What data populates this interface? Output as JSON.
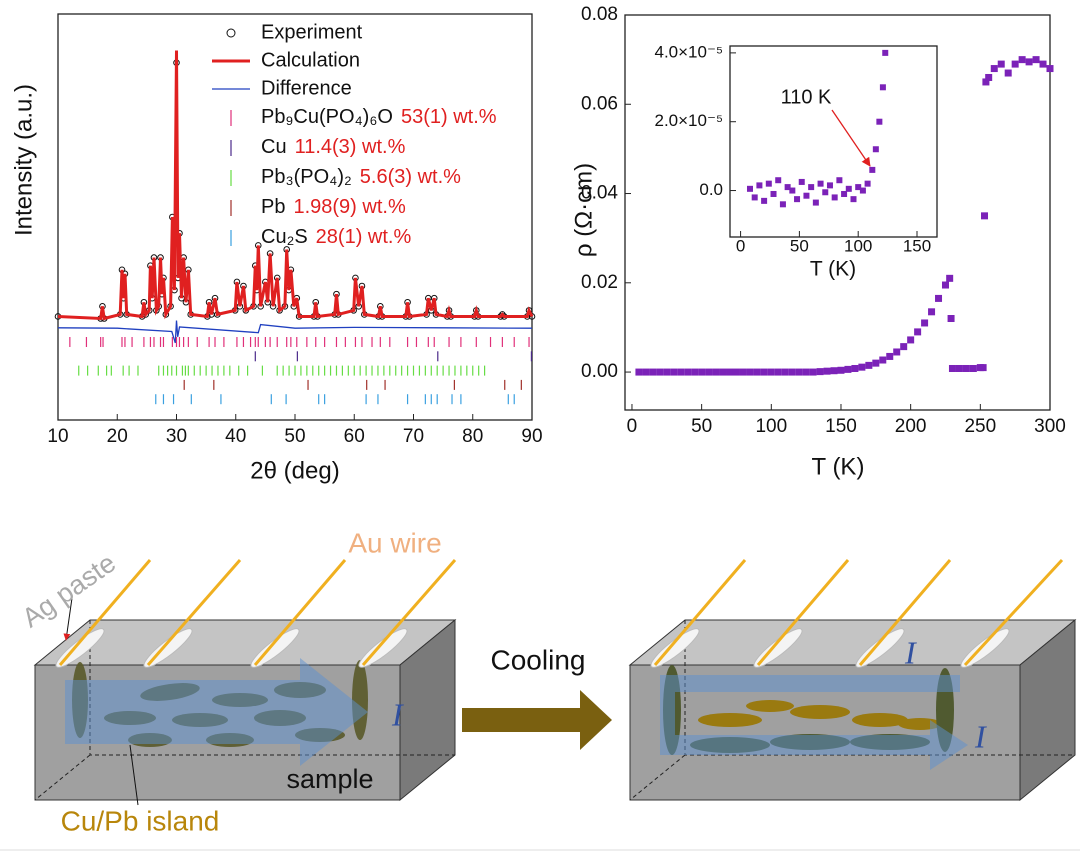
{
  "chart_data": [
    {
      "type": "line",
      "xlabel": "2θ (deg)",
      "ylabel": "Intensity (a.u.)",
      "xlim": [
        10,
        90
      ],
      "xticks": [
        10,
        20,
        30,
        40,
        50,
        60,
        70,
        80,
        90
      ],
      "ylim": [
        0,
        100
      ],
      "x": [
        10,
        17.2,
        17.5,
        17.8,
        20.5,
        20.8,
        21.05,
        21.3,
        21.6,
        24.2,
        24.5,
        24.8,
        25.4,
        25.6,
        25.9,
        26.2,
        26.6,
        27.0,
        27.3,
        27.55,
        27.8,
        28.2,
        29.0,
        29.3,
        29.65,
        30.0,
        30.25,
        30.5,
        30.85,
        31.2,
        31.6,
        32.0,
        32.4,
        35.2,
        35.5,
        35.9,
        36.5,
        36.9,
        39.9,
        40.2,
        40.7,
        41.3,
        41.7,
        43.0,
        43.3,
        43.55,
        43.8,
        44.2,
        45.0,
        45.4,
        45.8,
        46.3,
        47.0,
        47.4,
        48.3,
        48.6,
        48.95,
        49.3,
        49.8,
        50.3,
        50.7,
        53.2,
        53.5,
        53.8,
        56.7,
        57.0,
        57.3,
        59.9,
        60.2,
        60.75,
        61.3,
        61.7,
        64.1,
        64.4,
        64.7,
        68.7,
        69.0,
        69.3,
        72.2,
        72.5,
        73.0,
        73.5,
        73.8,
        75.7,
        76.0,
        76.3,
        80.3,
        80.6,
        80.9,
        84.7,
        85.0,
        85.3,
        89.2,
        89.5,
        90
      ],
      "series": [
        {
          "name": "Experiment",
          "mark": "circle",
          "color": "#111111",
          "values": [
            25.5,
            25,
            28,
            25,
            26,
            37,
            30,
            36,
            26,
            25.5,
            29,
            26,
            27,
            38,
            30,
            40,
            27,
            28,
            40,
            31,
            35,
            26,
            28,
            50,
            32,
            88,
            35,
            46,
            30,
            40,
            29,
            37,
            26,
            25.5,
            29,
            26,
            30,
            26,
            27,
            34,
            28,
            33,
            27,
            28,
            38,
            32,
            43,
            28,
            34,
            29,
            41,
            28,
            35,
            27,
            28,
            42,
            32,
            37,
            28,
            30,
            25.5,
            25.5,
            29,
            25.5,
            26,
            31,
            26,
            27,
            35,
            28,
            33,
            26,
            25.5,
            28,
            25.5,
            25.5,
            29,
            25.5,
            26,
            30,
            27,
            30,
            26,
            25.5,
            27,
            25.5,
            25.5,
            27,
            25.5,
            25.5,
            26,
            25.5,
            25.5,
            27,
            25.5
          ]
        },
        {
          "name": "Calculation",
          "mark": "line",
          "color": "#e02020",
          "values": [
            25.5,
            25,
            28,
            25,
            26,
            37,
            30,
            36,
            26,
            25.5,
            29,
            26,
            27,
            38,
            30,
            40,
            27,
            28,
            40,
            31,
            35,
            26,
            28,
            50,
            32,
            91,
            35,
            46,
            30,
            40,
            29,
            37,
            26,
            25.5,
            29,
            26,
            30,
            26,
            27,
            34,
            28,
            33,
            27,
            28,
            38,
            32,
            43,
            28,
            34,
            29,
            41,
            28,
            35,
            27,
            28,
            42,
            32,
            37,
            28,
            30,
            25.5,
            25.5,
            29,
            25.5,
            26,
            31,
            26,
            27,
            35,
            28,
            33,
            26,
            25.5,
            28,
            25.5,
            25.5,
            29,
            25.5,
            26,
            30,
            27,
            30,
            26,
            25.5,
            27,
            25.5,
            25.5,
            27,
            25.5,
            25.5,
            26,
            25.5,
            25.5,
            27,
            25.5
          ]
        },
        {
          "name": "Difference",
          "mark": "line",
          "color": "#2040c0",
          "x": [
            10,
            20,
            29.2,
            29.8,
            30.0,
            30.2,
            30.5,
            43.8,
            44.2,
            50,
            60,
            75,
            90
          ],
          "values": [
            22.7,
            22.6,
            21.8,
            19,
            24.5,
            20.5,
            22.9,
            21.5,
            23.5,
            22.6,
            22.8,
            22.7,
            22.6
          ]
        }
      ],
      "reflections": [
        {
          "name": "Pb₉Cu(PO₄)₆O",
          "wt": "53(1) wt.%",
          "color": "#e0307a",
          "positions": [
            12,
            14.8,
            17.2,
            17.6,
            20.8,
            21.3,
            22.5,
            24.5,
            25.6,
            26.2,
            27.3,
            27.8,
            29.3,
            30.0,
            30.5,
            31.2,
            32.0,
            33.5,
            35.5,
            36.5,
            38,
            40.2,
            41.3,
            42.5,
            43.3,
            43.8,
            45,
            45.8,
            47,
            48.6,
            49.3,
            50.3,
            52,
            53.5,
            55,
            57,
            58.5,
            60.2,
            61.3,
            63,
            64.4,
            66,
            69,
            70.5,
            72.5,
            73.5,
            76,
            78,
            80.6,
            83,
            85,
            87,
            89.5
          ]
        },
        {
          "name": "Cu",
          "wt": "11.4(3) wt.%",
          "color": "#4b2a8a",
          "positions": [
            43.3,
            50.4,
            74.1,
            89.9
          ]
        },
        {
          "name": "Pb₃(PO₄)₂",
          "wt": "5.6(3) wt.%",
          "color": "#66dd44",
          "positions": [
            13.5,
            15,
            16.8,
            18.2,
            19,
            21,
            22,
            23.5,
            27,
            27.8,
            28.5,
            29.2,
            30,
            31,
            31.5,
            32,
            33,
            34,
            35,
            36,
            37,
            38,
            39,
            40.5,
            42,
            44.5,
            47,
            48,
            49,
            50,
            51,
            52,
            53,
            54,
            55,
            56,
            57,
            58,
            59,
            60,
            61,
            62,
            63,
            64,
            65,
            66,
            67,
            68,
            69,
            70,
            71,
            72,
            73,
            74,
            75,
            76,
            77,
            78,
            79,
            80,
            81,
            82
          ]
        },
        {
          "name": "Pb",
          "wt": "1.98(9) wt.%",
          "color": "#a0302a",
          "positions": [
            31.3,
            36.3,
            52.2,
            62.1,
            65.2,
            76.9,
            85.4,
            88.2
          ]
        },
        {
          "name": "Cu₂S",
          "wt": "28(1) wt.%",
          "color": "#3aa0e0",
          "positions": [
            26.5,
            27.8,
            29.5,
            32.5,
            37.5,
            46,
            48.5,
            54,
            55,
            62,
            64,
            69,
            72,
            73,
            74,
            76.5,
            78,
            86,
            87
          ]
        }
      ]
    },
    {
      "type": "scatter",
      "xlabel": "T (K)",
      "ylabel": "ρ (Ω·cm)",
      "color": "#7b22b8",
      "xlim": [
        -5,
        300
      ],
      "xticks": [
        0,
        50,
        100,
        150,
        200,
        250,
        300
      ],
      "ylim": [
        -0.0085,
        0.08
      ],
      "yticks": [
        {
          "value": 0,
          "label": "0.00"
        },
        0.02,
        0.04,
        0.06,
        0.08
      ],
      "x": [
        5,
        10,
        15,
        20,
        25,
        30,
        35,
        40,
        45,
        50,
        55,
        60,
        65,
        70,
        75,
        80,
        85,
        90,
        95,
        100,
        105,
        110,
        115,
        120,
        125,
        130,
        135,
        140,
        145,
        150,
        155,
        160,
        165,
        170,
        175,
        180,
        185,
        190,
        195,
        200,
        205,
        210,
        215,
        220,
        225,
        228,
        229,
        230,
        235,
        240,
        245,
        250,
        252,
        253,
        254,
        256,
        260,
        265,
        270,
        275,
        280,
        285,
        290,
        295,
        300
      ],
      "values": [
        0,
        0,
        0,
        0,
        0,
        0,
        0,
        0,
        0,
        0,
        0,
        0,
        0,
        0,
        0,
        0,
        0,
        0,
        0,
        0,
        0,
        0,
        0,
        0,
        0,
        0,
        0.0001,
        0.0002,
        0.0003,
        0.0004,
        0.0006,
        0.0008,
        0.0011,
        0.0015,
        0.002,
        0.0027,
        0.0035,
        0.0045,
        0.0057,
        0.0072,
        0.009,
        0.011,
        0.0135,
        0.0165,
        0.0195,
        0.021,
        0.012,
        0.0008,
        0.0008,
        0.0008,
        0.0008,
        0.001,
        0.001,
        0.035,
        0.065,
        0.066,
        0.068,
        0.069,
        0.067,
        0.069,
        0.07,
        0.0695,
        0.07,
        0.069,
        0.068
      ]
    },
    {
      "type": "scatter",
      "xlabel": "T (K)",
      "color": "#7b22b8",
      "annotation": "110 K",
      "xlim": [
        -9,
        167
      ],
      "xticks": [
        0,
        50,
        100,
        150
      ],
      "ylim": [
        -1.35e-05,
        4.2e-05
      ],
      "yticks": [
        {
          "value": 0,
          "label": "0.0"
        },
        {
          "value": 2e-05,
          "label": "2.0×10⁻⁵"
        },
        {
          "value": 4e-05,
          "label": "4.0×10⁻⁵"
        }
      ],
      "x": [
        8,
        12,
        16,
        20,
        24,
        28,
        32,
        36,
        40,
        44,
        48,
        52,
        56,
        60,
        64,
        68,
        72,
        76,
        80,
        84,
        88,
        92,
        96,
        100,
        104,
        108,
        112,
        115,
        118,
        121,
        123
      ],
      "values": [
        5e-07,
        -2e-06,
        1.5e-06,
        -3e-06,
        2e-06,
        -1e-06,
        3e-06,
        -4e-06,
        1e-06,
        0,
        -2.5e-06,
        2.5e-06,
        -1.5e-06,
        1e-06,
        -3.5e-06,
        2e-06,
        -5e-07,
        1.5e-06,
        -2e-06,
        3e-06,
        -1e-06,
        5e-07,
        -2.5e-06,
        1e-06,
        0,
        2e-06,
        6e-06,
        1.2e-05,
        2e-05,
        3e-05,
        4e-05
      ]
    }
  ],
  "diagram": {
    "ag_paste": "Ag paste",
    "au_wire": "Au wire",
    "cooling": "Cooling",
    "current": "I",
    "sample": "sample",
    "island": "Cu/Pb island"
  }
}
